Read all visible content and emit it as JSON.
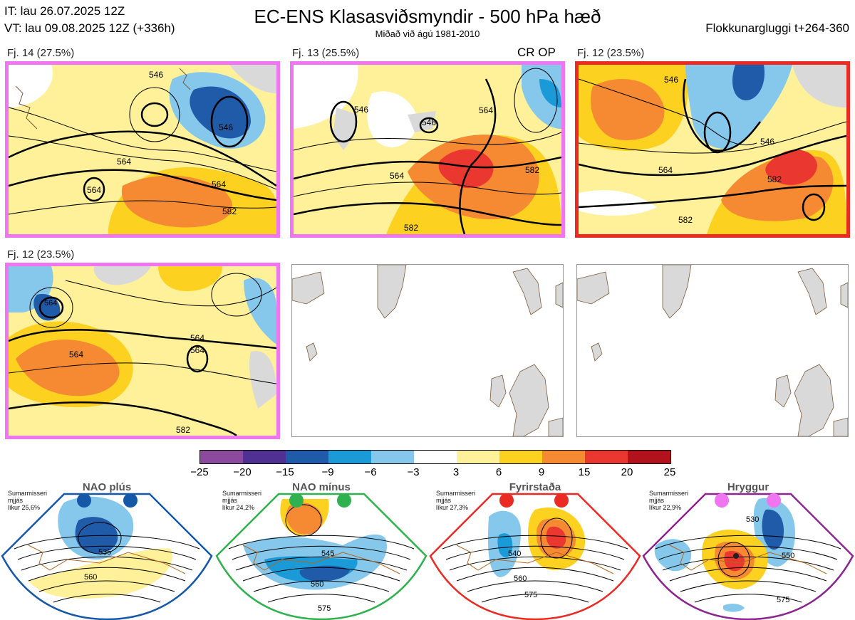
{
  "header": {
    "issue_time": "IT: lau 26.07.2025 12Z",
    "valid_time": "VT: lau 09.08.2025 12Z  (+336h)",
    "title": "EC-ENS Klasasviðsmyndir - 500 hPa hæð",
    "subtitle": "Miðað við ágú 1981-2010",
    "window": "Flokkunargluggi t+264-360"
  },
  "panels": [
    {
      "label": "Fj. 14 (27.5%)",
      "regime_color": "#f075f0",
      "contours": [
        "546",
        "564",
        "564",
        "582",
        "564",
        "546"
      ]
    },
    {
      "label": "Fj. 13 (25.5%)",
      "regime_color": "#f075f0",
      "tag": "CR OP",
      "contours": [
        "546",
        "546",
        "564",
        "564",
        "582",
        "582"
      ]
    },
    {
      "label": "Fj. 12 (23.5%)",
      "regime_color": "#ec2a24",
      "contours": [
        "546",
        "564",
        "582",
        "582",
        "546"
      ]
    },
    {
      "label": "Fj. 12 (23.5%)",
      "regime_color": "#f075f0",
      "contours": [
        "564",
        "564",
        "564",
        "564",
        "582"
      ]
    }
  ],
  "colorbar": {
    "colors": [
      "#8b4a9e",
      "#4e3192",
      "#1f5ba8",
      "#1b9ad8",
      "#86c8ec",
      "#ffffff",
      "#fff09a",
      "#fdd11f",
      "#f58a32",
      "#ea3730",
      "#b2121c"
    ],
    "ticks": [
      "−25",
      "−20",
      "−15",
      "−9",
      "−6",
      "−3",
      "3",
      "6",
      "9",
      "15",
      "20",
      "25"
    ]
  },
  "regimes": [
    {
      "name": "NAO plús",
      "dot_color": "#1558a8",
      "frame_color": "#1558a8",
      "note": [
        "Sumarmisseri",
        "mjjás",
        "líkur 25,6%"
      ],
      "contours": [
        "535",
        "560"
      ]
    },
    {
      "name": "NAO mínus",
      "dot_color": "#2eb14e",
      "frame_color": "#2eb14e",
      "note": [
        "Sumarmisseri",
        "mjjás",
        "líkur 24,2%"
      ],
      "contours": [
        "545",
        "560",
        "575"
      ]
    },
    {
      "name": "Fyrirstaða",
      "dot_color": "#ec2a24",
      "frame_color": "#ec2a24",
      "note": [
        "Sumarmisseri",
        "mjjás",
        "líkur 27,3%"
      ],
      "contours": [
        "540",
        "560",
        "575"
      ]
    },
    {
      "name": "Hryggur",
      "dot_color": "#f075f0",
      "frame_color": "#8b2590",
      "note": [
        "Sumarmisseri",
        "mjjás",
        "líkur 22,9%"
      ],
      "contours": [
        "530",
        "550",
        "575"
      ]
    }
  ]
}
